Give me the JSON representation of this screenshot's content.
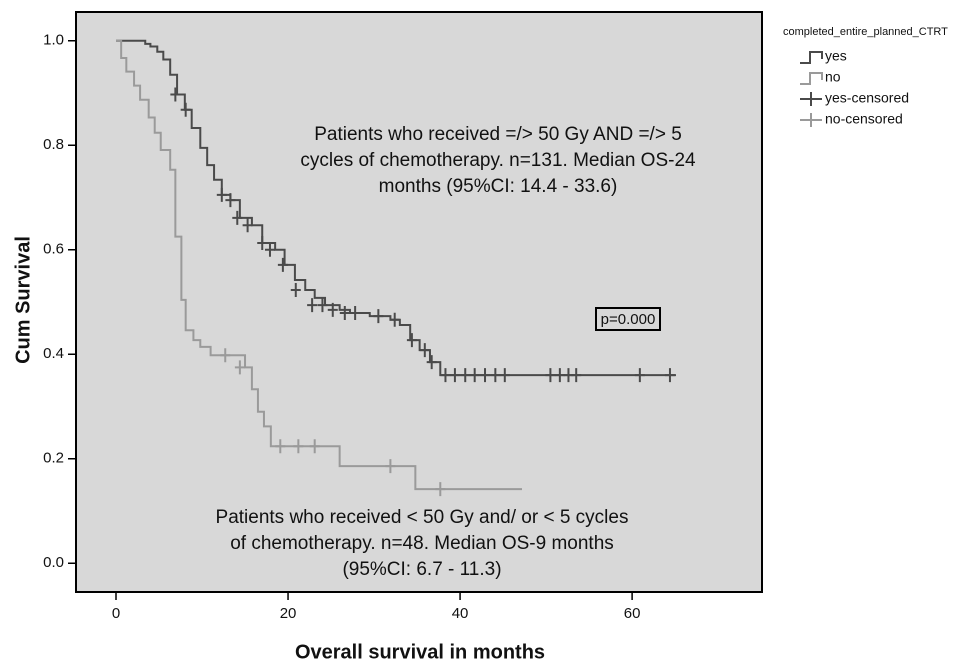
{
  "chart_data": {
    "type": "kaplan-meier",
    "x_label": "Overall survival in months",
    "y_label": "Cum Survival",
    "legend_title": "completed_entire_planned_CTRT",
    "legend": "right",
    "grid": false,
    "xlim": [
      -4.65,
      75.1
    ],
    "ylim": [
      -0.055,
      1.055
    ],
    "xticks": [
      0,
      20,
      40,
      60
    ],
    "yticks": [
      {
        "value": 0,
        "label": "0.0"
      },
      0.2,
      0.4,
      0.6,
      0.8,
      {
        "value": 1,
        "label": "1.0"
      }
    ],
    "annotations": [
      {
        "lines": [
          "Patients who received =/> 50 Gy AND =/> 5",
          "cycles of chemotherapy. n=131. Median OS-24",
          "months (95%CI: 14.4 - 33.6)"
        ]
      },
      {
        "lines": [
          "Patients who received < 50 Gy and/ or < 5 cycles",
          "of chemotherapy. n=48. Median OS-9 months",
          "(95%CI: 6.7 - 11.3)"
        ]
      }
    ],
    "p_label": "p=0.000",
    "series": [
      {
        "name": "yes",
        "style": "step",
        "color": "#4a4a4a",
        "x": [
          0,
          3.4,
          4.0,
          4.8,
          5.5,
          6.3,
          7.1,
          8.0,
          8.8,
          9.8,
          10.6,
          11.4,
          12.3,
          13.3,
          14.4,
          15.8,
          17.0,
          18.5,
          19.6,
          20.8,
          22.0,
          23.1,
          24.3,
          26.0,
          27.2,
          29.5,
          31.9,
          33.0,
          34.2,
          35.3,
          36.5,
          37.7,
          65.1
        ],
        "values": [
          1.0,
          0.994,
          0.989,
          0.979,
          0.964,
          0.935,
          0.897,
          0.868,
          0.833,
          0.795,
          0.762,
          0.734,
          0.705,
          0.695,
          0.661,
          0.647,
          0.613,
          0.6,
          0.571,
          0.542,
          0.523,
          0.508,
          0.494,
          0.485,
          0.479,
          0.473,
          0.466,
          0.456,
          0.427,
          0.408,
          0.385,
          0.36,
          0.36
        ]
      },
      {
        "name": "no",
        "style": "step",
        "color": "#9a9a9a",
        "x": [
          0,
          0.6,
          1.2,
          2.1,
          2.8,
          3.8,
          4.5,
          5.2,
          6.3,
          6.9,
          7.6,
          8.1,
          9.0,
          9.8,
          11.0,
          15.0,
          15.8,
          16.5,
          17.2,
          18.0,
          26.0,
          34.8,
          47.2
        ],
        "values": [
          1.0,
          0.967,
          0.941,
          0.914,
          0.887,
          0.853,
          0.824,
          0.791,
          0.753,
          0.625,
          0.504,
          0.446,
          0.427,
          0.414,
          0.398,
          0.375,
          0.333,
          0.29,
          0.262,
          0.224,
          0.186,
          0.142,
          0.142
        ]
      },
      {
        "name": "yes-censored",
        "style": "censor",
        "color": "#4a4a4a",
        "x": [
          6.9,
          8.1,
          12.3,
          13.3,
          14.1,
          15.3,
          17.0,
          17.9,
          19.4,
          20.9,
          22.8,
          24.0,
          25.2,
          26.6,
          27.8,
          30.5,
          32.4,
          34.4,
          35.9,
          36.7,
          38.3,
          39.4,
          40.6,
          41.7,
          42.9,
          44.1,
          45.2,
          50.5,
          51.6,
          52.6,
          53.5,
          60.9,
          64.4
        ],
        "values": [
          0.897,
          0.868,
          0.705,
          0.695,
          0.661,
          0.647,
          0.613,
          0.6,
          0.571,
          0.523,
          0.494,
          0.494,
          0.485,
          0.479,
          0.479,
          0.473,
          0.466,
          0.427,
          0.408,
          0.385,
          0.36,
          0.36,
          0.36,
          0.36,
          0.36,
          0.36,
          0.36,
          0.36,
          0.36,
          0.36,
          0.36,
          0.36,
          0.36
        ]
      },
      {
        "name": "no-censored",
        "style": "censor",
        "color": "#9a9a9a",
        "x": [
          12.7,
          14.4,
          19.1,
          21.2,
          23.1,
          31.9,
          37.7
        ],
        "values": [
          0.398,
          0.375,
          0.224,
          0.224,
          0.224,
          0.186,
          0.142
        ]
      }
    ]
  }
}
